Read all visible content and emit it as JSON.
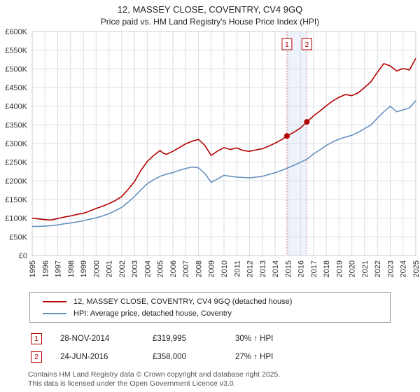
{
  "header": {
    "title": "12, MASSEY CLOSE, COVENTRY, CV4 9GQ",
    "subtitle": "Price paid vs. HM Land Registry's House Price Index (HPI)"
  },
  "chart_data": {
    "type": "line",
    "title": "12, MASSEY CLOSE, COVENTRY, CV4 9GQ",
    "subtitle": "Price paid vs. HM Land Registry's House Price Index (HPI)",
    "x_range": [
      1995,
      2025
    ],
    "y_range": [
      0,
      600
    ],
    "y_unit": "GBP thousands",
    "y_tick_step": 50,
    "y_tick_labels": [
      "£0",
      "£50K",
      "£100K",
      "£150K",
      "£200K",
      "£250K",
      "£300K",
      "£350K",
      "£400K",
      "£450K",
      "£500K",
      "£550K",
      "£600K"
    ],
    "x_tick_labels": [
      "1995",
      "1996",
      "1997",
      "1998",
      "1999",
      "2000",
      "2001",
      "2002",
      "2003",
      "2004",
      "2005",
      "2006",
      "2007",
      "2008",
      "2009",
      "2010",
      "2011",
      "2012",
      "2013",
      "2014",
      "2015",
      "2016",
      "2017",
      "2018",
      "2019",
      "2020",
      "2021",
      "2022",
      "2023",
      "2024",
      "2025"
    ],
    "grid": true,
    "legend_position": "bottom",
    "series": [
      {
        "name": "12, MASSEY CLOSE, COVENTRY, CV4 9GQ (detached house)",
        "color": "#b40000",
        "points": [
          [
            1995,
            100
          ],
          [
            1995.5,
            98
          ],
          [
            1996,
            96
          ],
          [
            1996.5,
            95
          ],
          [
            1997,
            99
          ],
          [
            1997.5,
            103
          ],
          [
            1998,
            106
          ],
          [
            1998.5,
            110
          ],
          [
            1999,
            113
          ],
          [
            1999.5,
            119
          ],
          [
            2000,
            126
          ],
          [
            2000.5,
            132
          ],
          [
            2001,
            139
          ],
          [
            2001.5,
            147
          ],
          [
            2002,
            158
          ],
          [
            2002.5,
            177
          ],
          [
            2003,
            198
          ],
          [
            2003.5,
            228
          ],
          [
            2004,
            252
          ],
          [
            2004.5,
            268
          ],
          [
            2005,
            281
          ],
          [
            2005.25,
            274
          ],
          [
            2005.5,
            271
          ],
          [
            2006,
            279
          ],
          [
            2006.5,
            289
          ],
          [
            2007,
            299
          ],
          [
            2007.5,
            306
          ],
          [
            2008,
            311
          ],
          [
            2008.5,
            295
          ],
          [
            2009,
            268
          ],
          [
            2009.5,
            280
          ],
          [
            2010,
            289
          ],
          [
            2010.5,
            284
          ],
          [
            2011,
            288
          ],
          [
            2011.5,
            281
          ],
          [
            2012,
            279
          ],
          [
            2012.5,
            283
          ],
          [
            2013,
            286
          ],
          [
            2013.5,
            293
          ],
          [
            2014,
            301
          ],
          [
            2014.5,
            310
          ],
          [
            2014.92,
            320
          ],
          [
            2015.5,
            331
          ],
          [
            2016,
            342
          ],
          [
            2016.48,
            358
          ],
          [
            2017,
            374
          ],
          [
            2017.5,
            387
          ],
          [
            2018,
            401
          ],
          [
            2018.5,
            414
          ],
          [
            2019,
            424
          ],
          [
            2019.5,
            431
          ],
          [
            2020,
            428
          ],
          [
            2020.5,
            436
          ],
          [
            2021,
            450
          ],
          [
            2021.5,
            466
          ],
          [
            2022,
            491
          ],
          [
            2022.5,
            514
          ],
          [
            2023,
            508
          ],
          [
            2023.5,
            494
          ],
          [
            2024,
            501
          ],
          [
            2024.5,
            497
          ],
          [
            2025,
            528
          ]
        ]
      },
      {
        "name": "HPI: Average price, detached house, Coventry",
        "color": "#6890c0",
        "points": [
          [
            1995,
            78
          ],
          [
            1995.5,
            78
          ],
          [
            1996,
            79
          ],
          [
            1996.5,
            80
          ],
          [
            1997,
            82
          ],
          [
            1997.5,
            85
          ],
          [
            1998,
            87
          ],
          [
            1998.5,
            90
          ],
          [
            1999,
            93
          ],
          [
            1999.5,
            97
          ],
          [
            2000,
            101
          ],
          [
            2000.5,
            106
          ],
          [
            2001,
            112
          ],
          [
            2001.5,
            120
          ],
          [
            2002,
            129
          ],
          [
            2002.5,
            143
          ],
          [
            2003,
            158
          ],
          [
            2003.5,
            176
          ],
          [
            2004,
            192
          ],
          [
            2004.5,
            203
          ],
          [
            2005,
            212
          ],
          [
            2005.5,
            218
          ],
          [
            2006,
            222
          ],
          [
            2006.5,
            228
          ],
          [
            2007,
            233
          ],
          [
            2007.5,
            237
          ],
          [
            2008,
            235
          ],
          [
            2008.5,
            220
          ],
          [
            2009,
            196
          ],
          [
            2009.5,
            205
          ],
          [
            2010,
            215
          ],
          [
            2010.5,
            212
          ],
          [
            2011,
            210
          ],
          [
            2011.5,
            209
          ],
          [
            2012,
            208
          ],
          [
            2012.5,
            210
          ],
          [
            2013,
            212
          ],
          [
            2013.5,
            217
          ],
          [
            2014,
            222
          ],
          [
            2014.5,
            228
          ],
          [
            2015,
            235
          ],
          [
            2015.5,
            242
          ],
          [
            2016,
            250
          ],
          [
            2016.5,
            258
          ],
          [
            2017,
            272
          ],
          [
            2017.5,
            283
          ],
          [
            2018,
            295
          ],
          [
            2018.5,
            304
          ],
          [
            2019,
            312
          ],
          [
            2019.5,
            317
          ],
          [
            2020,
            322
          ],
          [
            2020.5,
            330
          ],
          [
            2021,
            340
          ],
          [
            2021.5,
            350
          ],
          [
            2022,
            368
          ],
          [
            2022.5,
            385
          ],
          [
            2023,
            400
          ],
          [
            2023.5,
            385
          ],
          [
            2024,
            390
          ],
          [
            2024.5,
            395
          ],
          [
            2025,
            415
          ]
        ]
      }
    ],
    "sale_markers": [
      {
        "label": "1",
        "x": 2014.92,
        "y": 319.995
      },
      {
        "label": "2",
        "x": 2016.48,
        "y": 358
      }
    ],
    "highlight_band": {
      "from": 2014.92,
      "to": 2016.48,
      "color": "#edf2fb"
    },
    "marker_line_color": "#e08888",
    "grid_color": "#d8dde4"
  },
  "events": [
    {
      "num": "1",
      "date": "28-NOV-2014",
      "price": "£319,995",
      "hpi_change": "30% ↑ HPI"
    },
    {
      "num": "2",
      "date": "24-JUN-2016",
      "price": "£358,000",
      "hpi_change": "27% ↑ HPI"
    }
  ],
  "footer": [
    "Contains HM Land Registry data © Crown copyright and database right 2025.",
    "This data is licensed under the Open Government Licence v3.0."
  ]
}
